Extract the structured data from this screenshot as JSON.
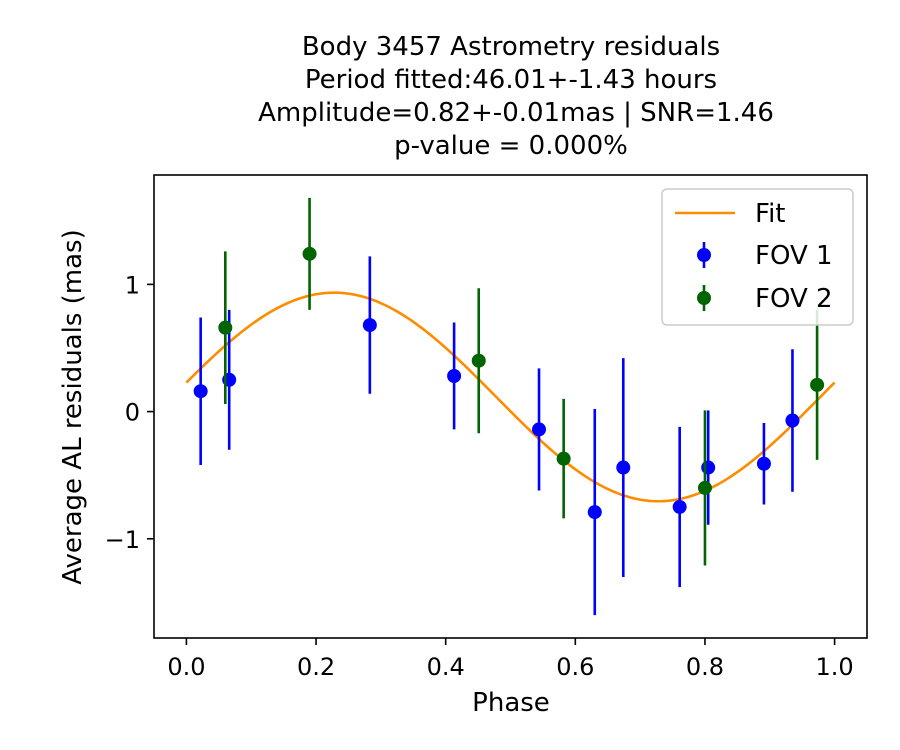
{
  "chart_data": {
    "type": "scatter",
    "title_lines": [
      "Body 3457 Astrometry residuals",
      "Period fitted:46.01+-1.43 hours",
      "Amplitude=0.82+-0.01mas | SNR=1.46",
      "p-value = 0.000%"
    ],
    "xlabel": "Phase",
    "ylabel": "Average AL residuals (mas)",
    "xlim": [
      -0.05,
      1.05
    ],
    "ylim": [
      -1.78,
      1.86
    ],
    "xticks": [
      0.0,
      0.2,
      0.4,
      0.6,
      0.8,
      1.0
    ],
    "xtick_labels": [
      "0.0",
      "0.2",
      "0.4",
      "0.6",
      "0.8",
      "1.0"
    ],
    "yticks": [
      -1,
      0,
      1
    ],
    "ytick_labels": [
      "−1",
      "0",
      "1"
    ],
    "grid": false,
    "legend_position": "top-right",
    "series": [
      {
        "name": "Fit",
        "kind": "line",
        "color": "#ff8c00",
        "offset": 0.115,
        "amplitude": 0.82,
        "phase_peak": 0.228,
        "x_range": [
          0.0,
          1.0
        ]
      },
      {
        "name": "FOV 1",
        "kind": "errorbar",
        "color": "#0000ff",
        "points": [
          {
            "x": 0.022,
            "y": 0.16,
            "err": 0.58
          },
          {
            "x": 0.066,
            "y": 0.25,
            "err": 0.55
          },
          {
            "x": 0.283,
            "y": 0.68,
            "err": 0.54
          },
          {
            "x": 0.413,
            "y": 0.28,
            "err": 0.42
          },
          {
            "x": 0.544,
            "y": -0.14,
            "err": 0.48
          },
          {
            "x": 0.63,
            "y": -0.79,
            "err": 0.81
          },
          {
            "x": 0.674,
            "y": -0.44,
            "err": 0.86
          },
          {
            "x": 0.761,
            "y": -0.75,
            "err": 0.63
          },
          {
            "x": 0.805,
            "y": -0.44,
            "err": 0.45
          },
          {
            "x": 0.891,
            "y": -0.41,
            "err": 0.32
          },
          {
            "x": 0.935,
            "y": -0.07,
            "err": 0.56
          }
        ]
      },
      {
        "name": "FOV 2",
        "kind": "errorbar",
        "color": "#006400",
        "points": [
          {
            "x": 0.06,
            "y": 0.66,
            "err": 0.6
          },
          {
            "x": 0.19,
            "y": 1.24,
            "err": 0.44
          },
          {
            "x": 0.451,
            "y": 0.4,
            "err": 0.57
          },
          {
            "x": 0.582,
            "y": -0.37,
            "err": 0.47
          },
          {
            "x": 0.8,
            "y": -0.6,
            "err": 0.61
          },
          {
            "x": 0.973,
            "y": 0.21,
            "err": 0.59
          }
        ]
      }
    ]
  }
}
